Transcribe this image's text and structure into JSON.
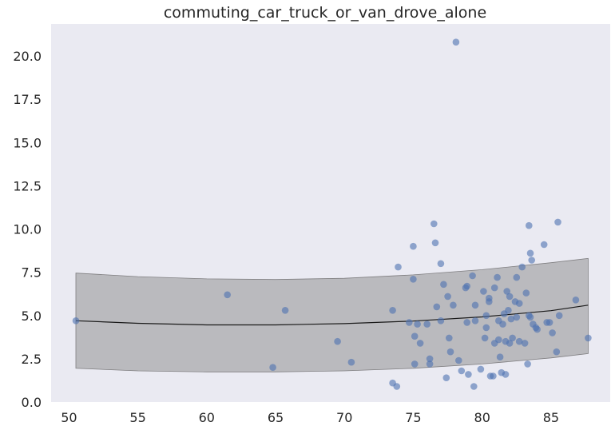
{
  "chart_data": {
    "type": "scatter",
    "title": "commuting_car_truck_or_van_drove_alone",
    "xlabel": "",
    "ylabel": "",
    "xlim": [
      48.7,
      89.3
    ],
    "ylim": [
      0.0,
      21.85
    ],
    "x_ticks": [
      50,
      55,
      60,
      65,
      70,
      75,
      80,
      85
    ],
    "x_tick_labels": [
      "50",
      "55",
      "60",
      "65",
      "70",
      "75",
      "80",
      "85"
    ],
    "y_ticks": [
      0,
      2.5,
      5,
      7.5,
      10,
      12.5,
      15,
      17.5,
      20
    ],
    "y_tick_labels": [
      "0.0",
      "2.5",
      "5.0",
      "7.5",
      "10.0",
      "12.5",
      "15.0",
      "17.5",
      "20.0"
    ],
    "grid": false,
    "legend": "none",
    "colors": {
      "points": "#4c72b0",
      "band": "#9a999b",
      "fit_line": "#1a1a1a",
      "background": "#eaeaf2"
    },
    "points": [
      [
        50.5,
        4.7
      ],
      [
        61.5,
        6.2
      ],
      [
        65.7,
        5.3
      ],
      [
        64.8,
        2.0
      ],
      [
        69.5,
        3.5
      ],
      [
        70.5,
        2.3
      ],
      [
        73.5,
        5.3
      ],
      [
        73.5,
        1.1
      ],
      [
        73.8,
        0.9
      ],
      [
        73.9,
        7.8
      ],
      [
        74.7,
        4.6
      ],
      [
        75.0,
        9.0
      ],
      [
        75.0,
        7.1
      ],
      [
        75.1,
        3.8
      ],
      [
        75.1,
        2.2
      ],
      [
        75.3,
        4.5
      ],
      [
        75.5,
        3.4
      ],
      [
        76.0,
        4.5
      ],
      [
        76.2,
        2.5
      ],
      [
        76.2,
        2.2
      ],
      [
        76.5,
        10.3
      ],
      [
        76.6,
        9.2
      ],
      [
        76.7,
        5.5
      ],
      [
        77.0,
        8.0
      ],
      [
        77.0,
        4.7
      ],
      [
        77.2,
        6.8
      ],
      [
        77.4,
        1.4
      ],
      [
        77.5,
        6.1
      ],
      [
        77.6,
        3.7
      ],
      [
        77.7,
        2.9
      ],
      [
        77.9,
        5.6
      ],
      [
        78.1,
        20.8
      ],
      [
        78.3,
        2.4
      ],
      [
        78.5,
        1.8
      ],
      [
        78.8,
        6.6
      ],
      [
        78.9,
        6.7
      ],
      [
        78.9,
        4.6
      ],
      [
        79.0,
        1.6
      ],
      [
        79.3,
        7.3
      ],
      [
        79.4,
        0.9
      ],
      [
        79.5,
        5.6
      ],
      [
        79.5,
        4.7
      ],
      [
        79.9,
        1.9
      ],
      [
        80.1,
        6.4
      ],
      [
        80.2,
        3.7
      ],
      [
        80.3,
        5.0
      ],
      [
        80.3,
        4.3
      ],
      [
        80.5,
        6.0
      ],
      [
        80.5,
        5.8
      ],
      [
        80.6,
        1.5
      ],
      [
        80.8,
        1.5
      ],
      [
        80.9,
        6.6
      ],
      [
        80.9,
        3.4
      ],
      [
        81.1,
        7.2
      ],
      [
        81.2,
        4.7
      ],
      [
        81.2,
        3.6
      ],
      [
        81.3,
        2.6
      ],
      [
        81.4,
        1.7
      ],
      [
        81.5,
        4.5
      ],
      [
        81.6,
        5.1
      ],
      [
        81.7,
        3.5
      ],
      [
        81.7,
        1.6
      ],
      [
        81.8,
        6.4
      ],
      [
        81.9,
        5.3
      ],
      [
        82.0,
        6.1
      ],
      [
        82.0,
        3.4
      ],
      [
        82.1,
        4.8
      ],
      [
        82.2,
        3.7
      ],
      [
        82.4,
        5.8
      ],
      [
        82.5,
        4.9
      ],
      [
        82.5,
        7.2
      ],
      [
        82.7,
        5.7
      ],
      [
        82.7,
        3.5
      ],
      [
        82.9,
        7.8
      ],
      [
        83.1,
        3.4
      ],
      [
        83.2,
        6.3
      ],
      [
        83.3,
        2.2
      ],
      [
        83.4,
        10.2
      ],
      [
        83.4,
        5.0
      ],
      [
        83.5,
        4.9
      ],
      [
        83.5,
        8.6
      ],
      [
        83.6,
        8.2
      ],
      [
        83.7,
        4.5
      ],
      [
        83.9,
        4.3
      ],
      [
        84.0,
        4.2
      ],
      [
        84.5,
        9.1
      ],
      [
        84.7,
        4.6
      ],
      [
        84.9,
        4.6
      ],
      [
        85.1,
        4.0
      ],
      [
        85.4,
        2.9
      ],
      [
        85.5,
        10.4
      ],
      [
        85.6,
        5.0
      ],
      [
        86.8,
        5.9
      ],
      [
        87.7,
        3.7
      ]
    ],
    "fit_line": [
      [
        50.5,
        4.7
      ],
      [
        55.0,
        4.55
      ],
      [
        60.0,
        4.46
      ],
      [
        65.0,
        4.46
      ],
      [
        70.0,
        4.53
      ],
      [
        75.0,
        4.68
      ],
      [
        80.0,
        4.92
      ],
      [
        85.0,
        5.28
      ],
      [
        87.7,
        5.6
      ]
    ],
    "band_upper": [
      [
        50.5,
        7.45
      ],
      [
        55.0,
        7.25
      ],
      [
        60.0,
        7.12
      ],
      [
        65.0,
        7.08
      ],
      [
        70.0,
        7.15
      ],
      [
        75.0,
        7.35
      ],
      [
        80.0,
        7.65
      ],
      [
        85.0,
        8.05
      ],
      [
        87.7,
        8.3
      ]
    ],
    "band_lower": [
      [
        50.5,
        1.95
      ],
      [
        55.0,
        1.8
      ],
      [
        60.0,
        1.74
      ],
      [
        65.0,
        1.74
      ],
      [
        70.0,
        1.8
      ],
      [
        75.0,
        1.95
      ],
      [
        80.0,
        2.2
      ],
      [
        85.0,
        2.55
      ],
      [
        87.7,
        2.8
      ]
    ]
  }
}
